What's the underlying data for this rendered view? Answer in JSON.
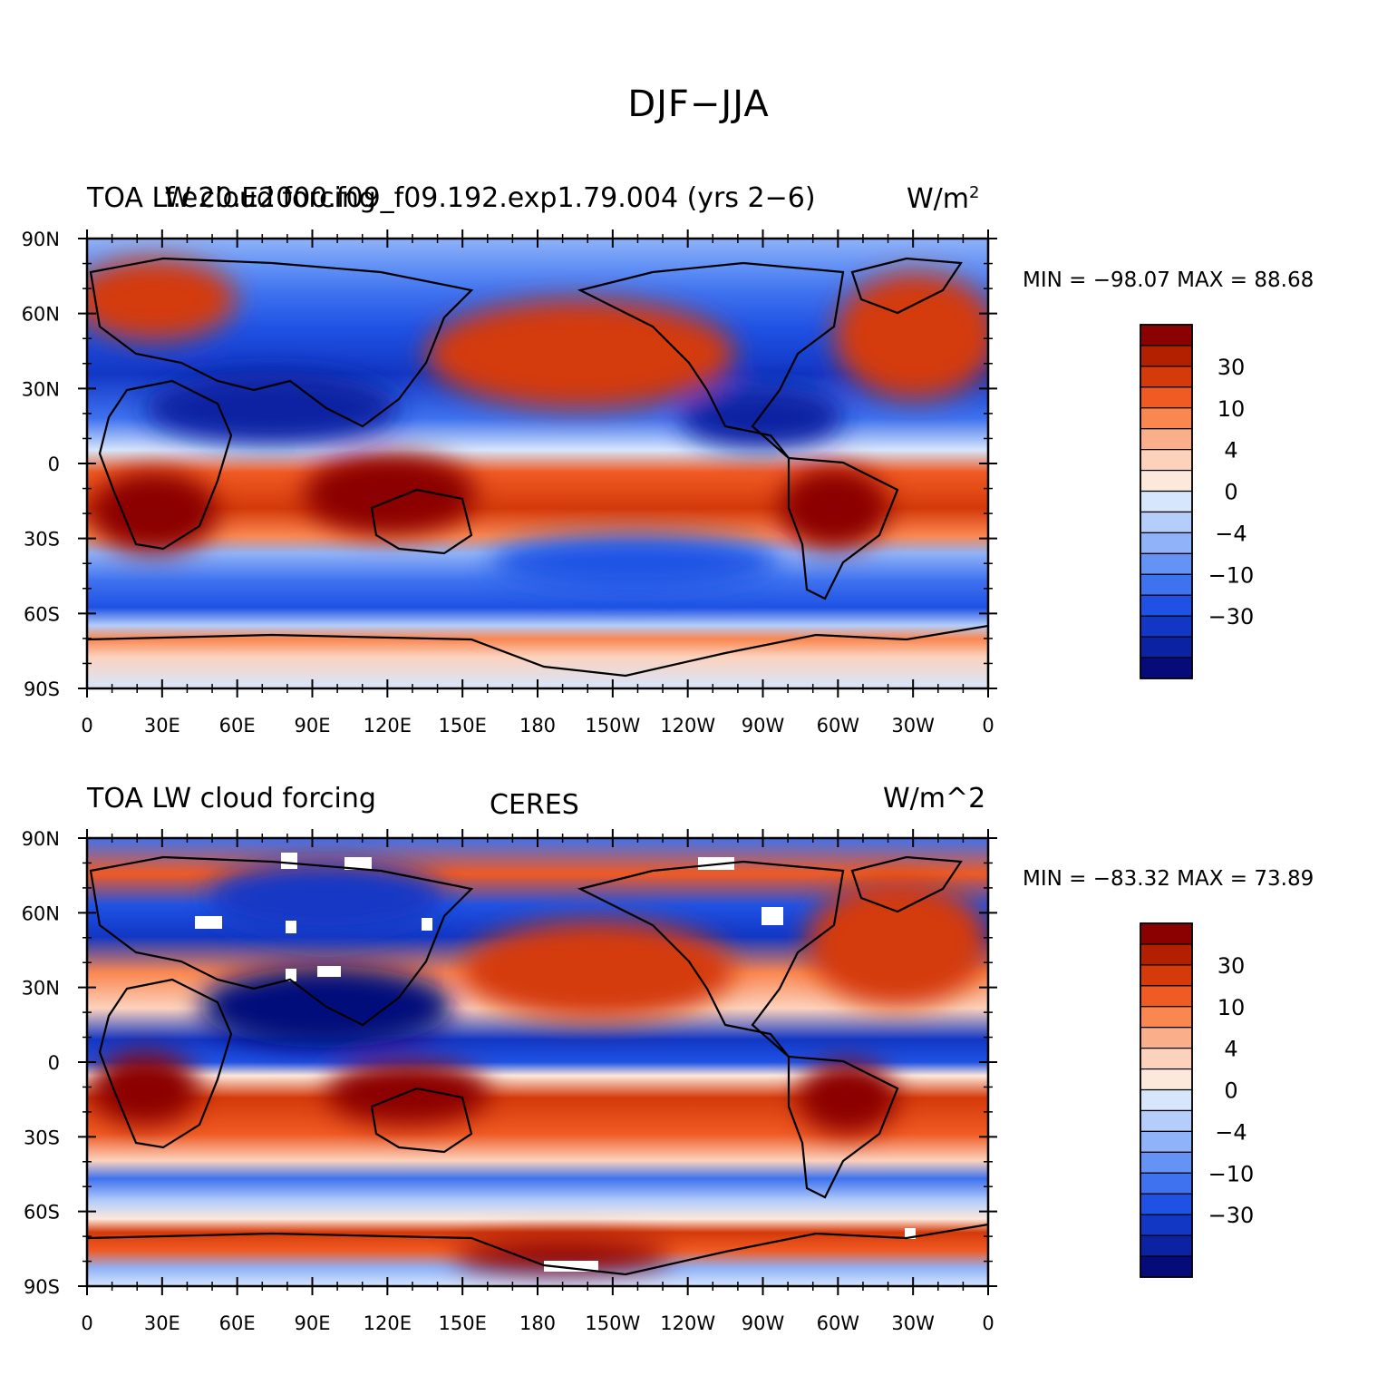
{
  "title": "DJF−JJA",
  "panels": [
    {
      "id": "model",
      "left_label": "TOA LW cloud forcing",
      "center_label": "f.e20.E2000.f09_f09.192.exp1.79.004 (yrs 2−6)",
      "units_label": "W/m",
      "units_superscript": "2",
      "min_max": "MIN = −98.07  MAX =   88.68"
    },
    {
      "id": "ceres",
      "left_label": "TOA LW cloud forcing",
      "center_label": "CERES",
      "units_label": "W/m^2",
      "units_superscript": "",
      "min_max": "MIN = −83.32  MAX =   73.89"
    }
  ],
  "lat_ticks": [
    "90N",
    "60N",
    "30N",
    "0",
    "30S",
    "60S",
    "90S"
  ],
  "lon_ticks": [
    "0",
    "30E",
    "60E",
    "90E",
    "120E",
    "150E",
    "180",
    "150W",
    "120W",
    "90W",
    "60W",
    "30W",
    "0"
  ],
  "colorbar": {
    "colors": [
      "#8b0000",
      "#b22000",
      "#d43a0a",
      "#f05a23",
      "#fa8750",
      "#fbae8a",
      "#fcd2bd",
      "#fde8dc",
      "#d6e6fc",
      "#b4cdfa",
      "#90b2f8",
      "#6493f5",
      "#3f72ef",
      "#1f52e4",
      "#1237c4",
      "#0b22a2",
      "#050c7a"
    ],
    "labels": [
      {
        "text": "30",
        "boundary": 2
      },
      {
        "text": "10",
        "boundary": 4
      },
      {
        "text": "4",
        "boundary": 6
      },
      {
        "text": "0",
        "boundary": 8
      },
      {
        "text": "−4",
        "boundary": 10
      },
      {
        "text": "−10",
        "boundary": 12
      },
      {
        "text": "−30",
        "boundary": 14
      }
    ]
  }
}
